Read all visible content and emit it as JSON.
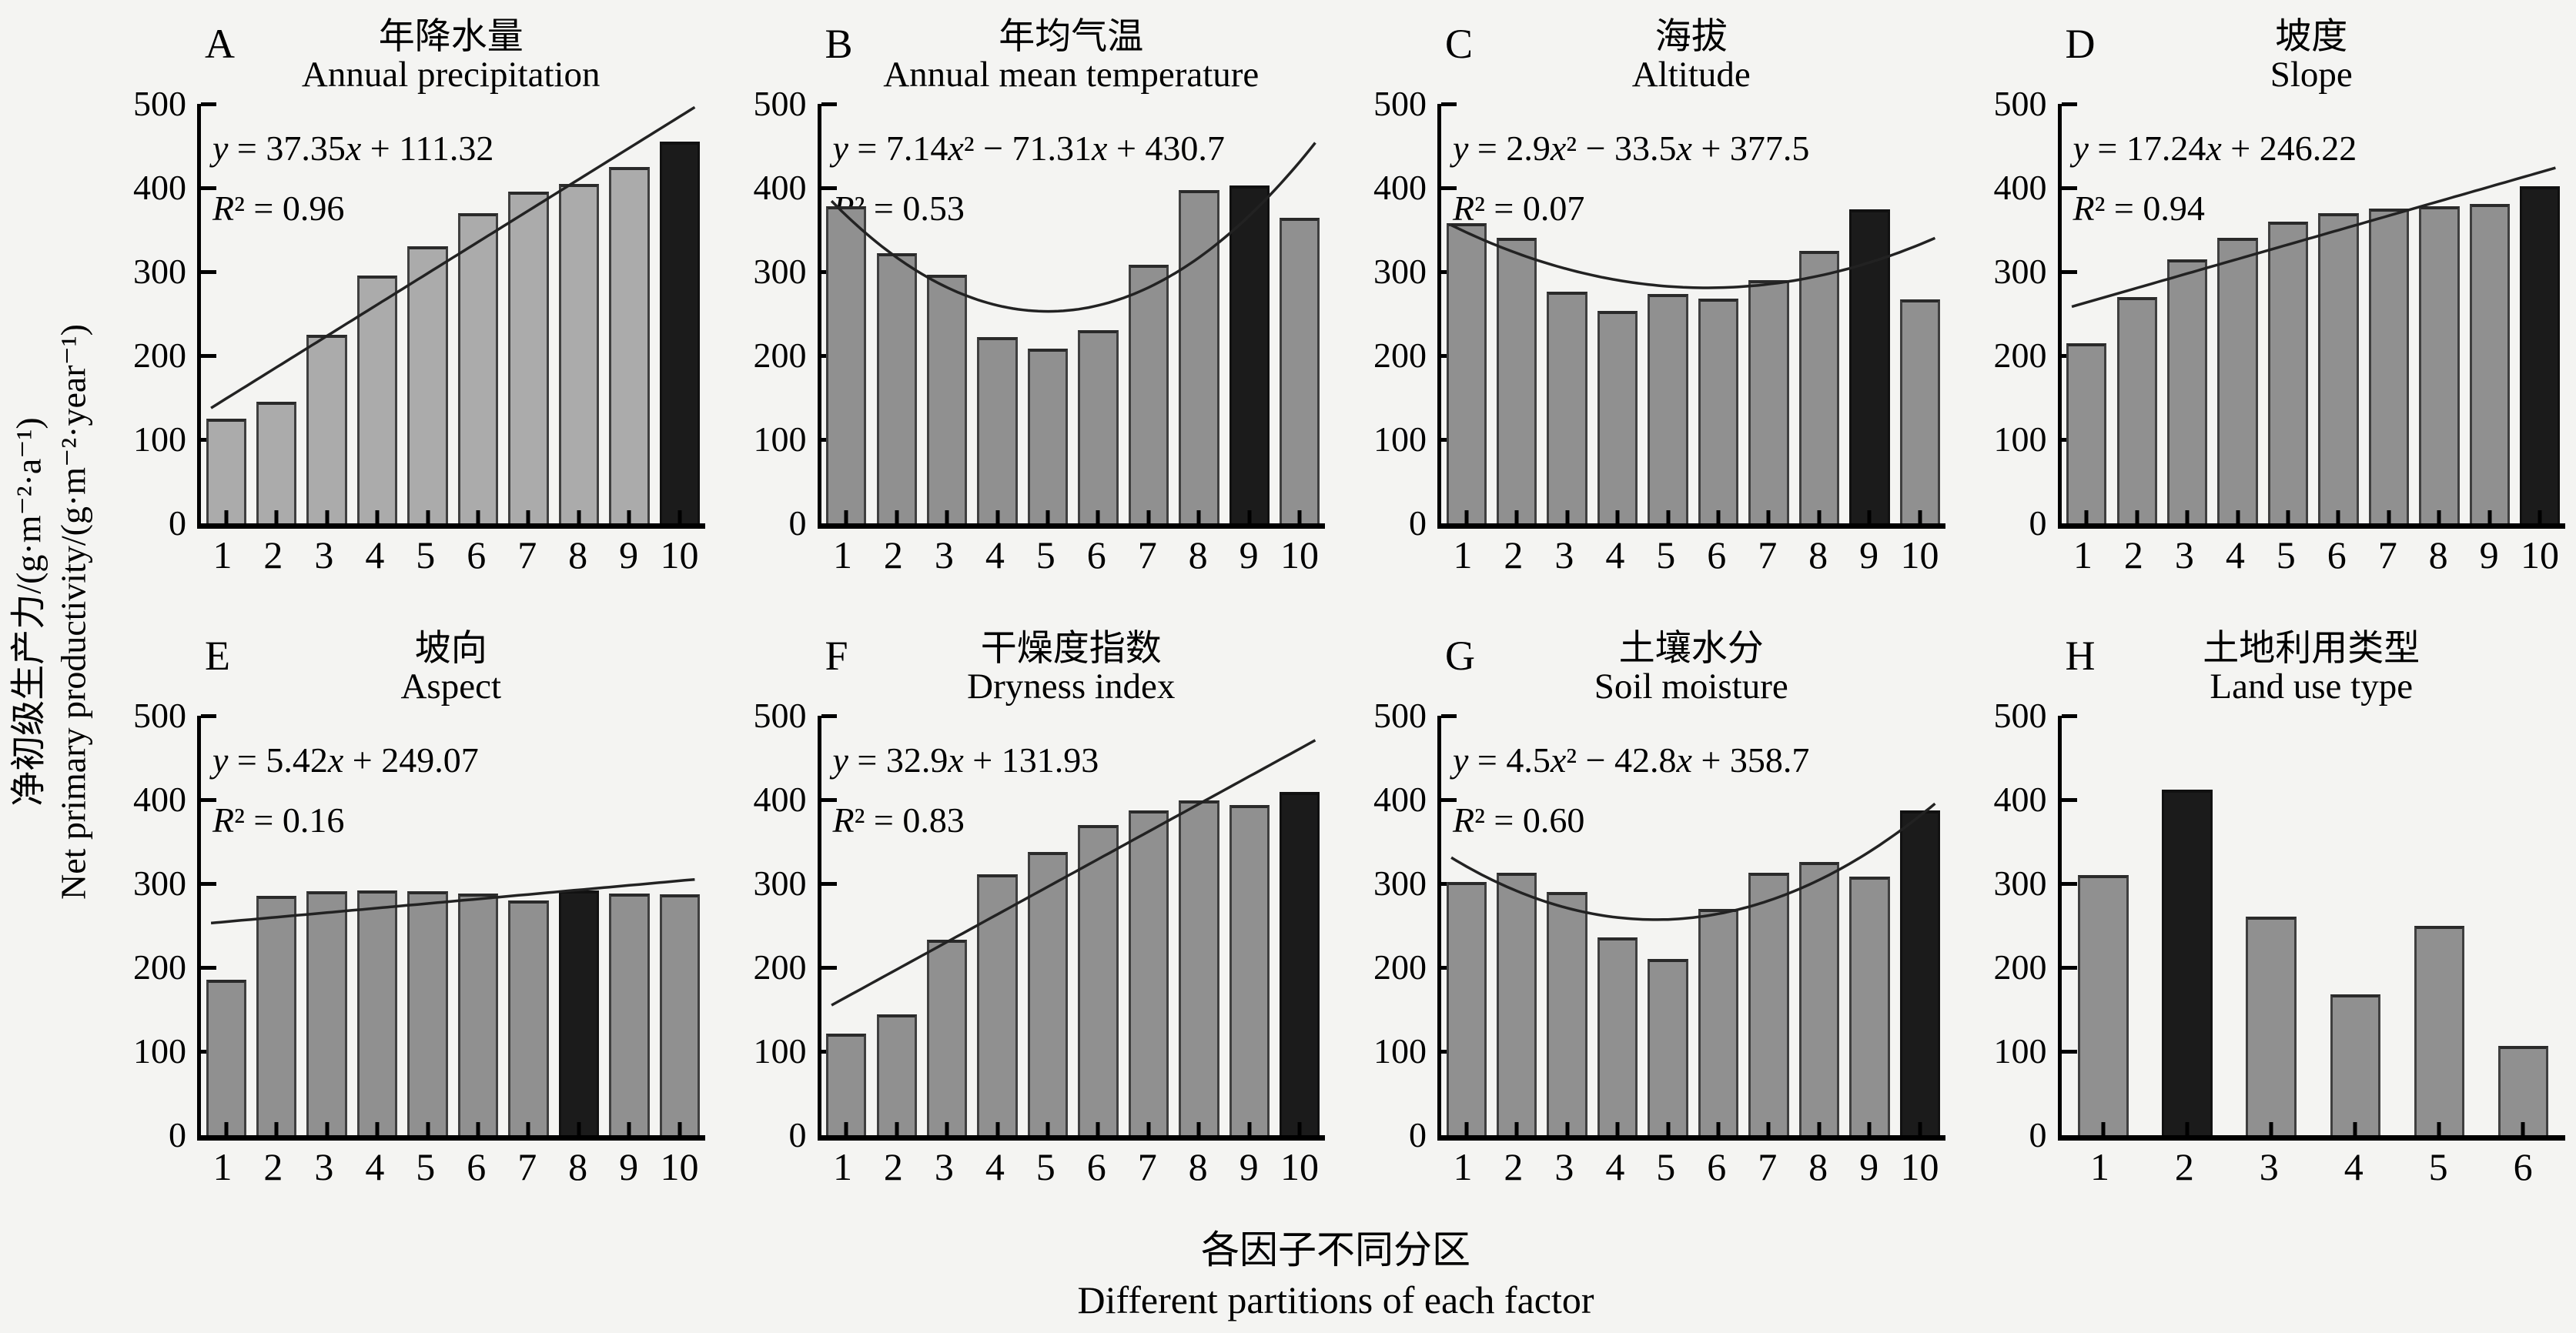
{
  "figure": {
    "y_axis_label_cn": "净初级生产力/(g·m⁻²·a⁻¹)",
    "y_axis_label_en": "Net primary productivity/(g·m⁻²·year⁻¹)",
    "x_axis_label_cn": "各因子不同分区",
    "x_axis_label_en": "Different partitions of each factor",
    "colors": {
      "background": "#f4f4f2",
      "bar_light": "#ababab",
      "bar_default": "#909090",
      "bar_highlight": "#1b1b1b",
      "axis": "#000000",
      "fit_line": "#222222"
    }
  },
  "chart_data": [
    {
      "type": "bar",
      "letter": "A",
      "title_cn": "年降水量",
      "title_en": "Annual precipitation",
      "equation": "y = 37.35x + 111.32",
      "r2": "R² = 0.96",
      "fit": {
        "a": 0,
        "b": 37.35,
        "c": 111.32
      },
      "categories": [
        1,
        2,
        3,
        4,
        5,
        6,
        7,
        8,
        9,
        10
      ],
      "values": [
        125,
        145,
        225,
        295,
        330,
        370,
        395,
        405,
        425,
        455
      ],
      "highlight_index": 9,
      "bar_color": "#ababab",
      "ylim": [
        0,
        500
      ],
      "yticks": [
        0,
        100,
        200,
        300,
        400,
        500
      ]
    },
    {
      "type": "bar",
      "letter": "B",
      "title_cn": "年均气温",
      "title_en": "Annual mean temperature",
      "equation": "y = 7.14x² − 71.31x + 430.7",
      "r2": "R² = 0.53",
      "fit": {
        "a": 7.14,
        "b": -71.31,
        "c": 430.7
      },
      "categories": [
        1,
        2,
        3,
        4,
        5,
        6,
        7,
        8,
        9,
        10
      ],
      "values": [
        378,
        322,
        296,
        222,
        208,
        230,
        308,
        397,
        403,
        364
      ],
      "highlight_index": 8,
      "bar_color": "#909090",
      "ylim": [
        0,
        500
      ],
      "yticks": [
        0,
        100,
        200,
        300,
        400,
        500
      ]
    },
    {
      "type": "bar",
      "letter": "C",
      "title_cn": "海拔",
      "title_en": "Altitude",
      "equation": "y = 2.9x² − 33.5x + 377.5",
      "r2": "R² = 0.07",
      "fit": {
        "a": 2.9,
        "b": -33.5,
        "c": 377.5
      },
      "categories": [
        1,
        2,
        3,
        4,
        5,
        6,
        7,
        8,
        9,
        10
      ],
      "values": [
        358,
        340,
        276,
        253,
        273,
        268,
        290,
        325,
        374,
        267
      ],
      "highlight_index": 8,
      "bar_color": "#909090",
      "ylim": [
        0,
        500
      ],
      "yticks": [
        0,
        100,
        200,
        300,
        400,
        500
      ]
    },
    {
      "type": "bar",
      "letter": "D",
      "title_cn": "坡度",
      "title_en": "Slope",
      "equation": "y = 17.24x + 246.22",
      "r2": "R² = 0.94",
      "fit": {
        "a": 0,
        "b": 17.24,
        "c": 246.22
      },
      "categories": [
        1,
        2,
        3,
        4,
        5,
        6,
        7,
        8,
        9,
        10
      ],
      "values": [
        215,
        270,
        315,
        340,
        360,
        370,
        375,
        378,
        381,
        402
      ],
      "highlight_index": 9,
      "bar_color": "#909090",
      "ylim": [
        0,
        500
      ],
      "yticks": [
        0,
        100,
        200,
        300,
        400,
        500
      ]
    },
    {
      "type": "bar",
      "letter": "E",
      "title_cn": "坡向",
      "title_en": "Aspect",
      "equation": "y = 5.42x + 249.07",
      "r2": "R² = 0.16",
      "fit": {
        "a": 0,
        "b": 5.42,
        "c": 249.07
      },
      "categories": [
        1,
        2,
        3,
        4,
        5,
        6,
        7,
        8,
        9,
        10
      ],
      "values": [
        185,
        285,
        291,
        292,
        291,
        288,
        280,
        292,
        288,
        287
      ],
      "highlight_index": 7,
      "bar_color": "#909090",
      "ylim": [
        0,
        500
      ],
      "yticks": [
        0,
        100,
        200,
        300,
        400,
        500
      ]
    },
    {
      "type": "bar",
      "letter": "F",
      "title_cn": "干燥度指数",
      "title_en": "Dryness index",
      "equation": "y = 32.9x + 131.93",
      "r2": "R² = 0.83",
      "fit": {
        "a": 0,
        "b": 32.9,
        "c": 131.93
      },
      "categories": [
        1,
        2,
        3,
        4,
        5,
        6,
        7,
        8,
        9,
        10
      ],
      "values": [
        121,
        144,
        233,
        311,
        338,
        370,
        387,
        399,
        394,
        409
      ],
      "highlight_index": 9,
      "bar_color": "#909090",
      "ylim": [
        0,
        500
      ],
      "yticks": [
        0,
        100,
        200,
        300,
        400,
        500
      ]
    },
    {
      "type": "bar",
      "letter": "G",
      "title_cn": "土壤水分",
      "title_en": "Soil moisture",
      "equation": "y = 4.5x² − 42.8x + 358.7",
      "r2": "R² = 0.60",
      "fit": {
        "a": 4.5,
        "b": -42.8,
        "c": 358.7
      },
      "categories": [
        1,
        2,
        3,
        4,
        5,
        6,
        7,
        8,
        9,
        10
      ],
      "values": [
        302,
        313,
        290,
        236,
        210,
        270,
        313,
        326,
        308,
        387
      ],
      "highlight_index": 9,
      "bar_color": "#909090",
      "ylim": [
        0,
        500
      ],
      "yticks": [
        0,
        100,
        200,
        300,
        400,
        500
      ]
    },
    {
      "type": "bar",
      "letter": "H",
      "title_cn": "土地利用类型",
      "title_en": "Land use type",
      "equation": "",
      "r2": "",
      "fit": null,
      "categories": [
        1,
        2,
        3,
        4,
        5,
        6
      ],
      "values": [
        310,
        412,
        261,
        168,
        250,
        106
      ],
      "highlight_index": 1,
      "bar_color": "#909090",
      "ylim": [
        0,
        500
      ],
      "yticks": [
        0,
        100,
        200,
        300,
        400,
        500
      ]
    }
  ]
}
